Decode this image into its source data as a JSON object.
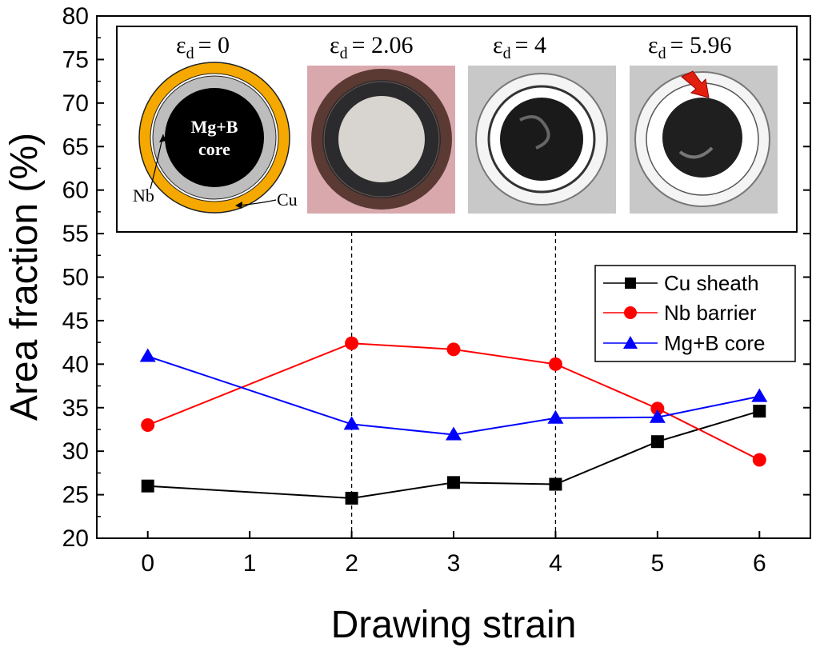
{
  "chart_data": {
    "type": "line",
    "xlabel": "Drawing strain",
    "ylabel": "Area fraction (%)",
    "xlim": [
      -0.5,
      6.5
    ],
    "ylim": [
      20,
      80
    ],
    "xticks": [
      0,
      1,
      2,
      3,
      4,
      5,
      6
    ],
    "yticks": [
      20,
      25,
      30,
      35,
      40,
      45,
      50,
      55,
      60,
      65,
      70,
      75,
      80
    ],
    "grid": false,
    "legend_position": "right",
    "reference_lines_x": [
      2,
      4
    ],
    "series": [
      {
        "name": "Cu sheath",
        "marker": "square",
        "color": "#000000",
        "x": [
          0,
          2,
          3,
          4,
          5,
          6
        ],
        "y": [
          26.0,
          24.6,
          26.4,
          26.2,
          31.1,
          34.6
        ]
      },
      {
        "name": "Nb barrier",
        "marker": "circle",
        "color": "#ff0000",
        "x": [
          0,
          2,
          3,
          4,
          5,
          6
        ],
        "y": [
          33.0,
          42.4,
          41.7,
          40.0,
          34.9,
          29.0
        ]
      },
      {
        "name": "Mg+B core",
        "marker": "triangle",
        "color": "#0000ff",
        "x": [
          0,
          2,
          3,
          4,
          5,
          6
        ],
        "y": [
          40.9,
          33.1,
          31.9,
          33.8,
          33.9,
          36.3
        ]
      }
    ],
    "inset": {
      "panels": [
        {
          "symbol": "ε",
          "subscript": "d",
          "value": "= 0"
        },
        {
          "symbol": "ε",
          "subscript": "d",
          "value": "= 2.06"
        },
        {
          "symbol": "ε",
          "subscript": "d",
          "value": "= 4"
        },
        {
          "symbol": "ε",
          "subscript": "d",
          "value": "= 5.96"
        }
      ],
      "schematic": {
        "core_line1": "Mg+B",
        "core_line2": "core",
        "nb_label": "Nb",
        "cu_label": "Cu"
      },
      "colors": {
        "cu": "#f5a800",
        "nb": "#bdbdbd",
        "core": "#000000",
        "arrow": "#e3200f"
      }
    }
  }
}
